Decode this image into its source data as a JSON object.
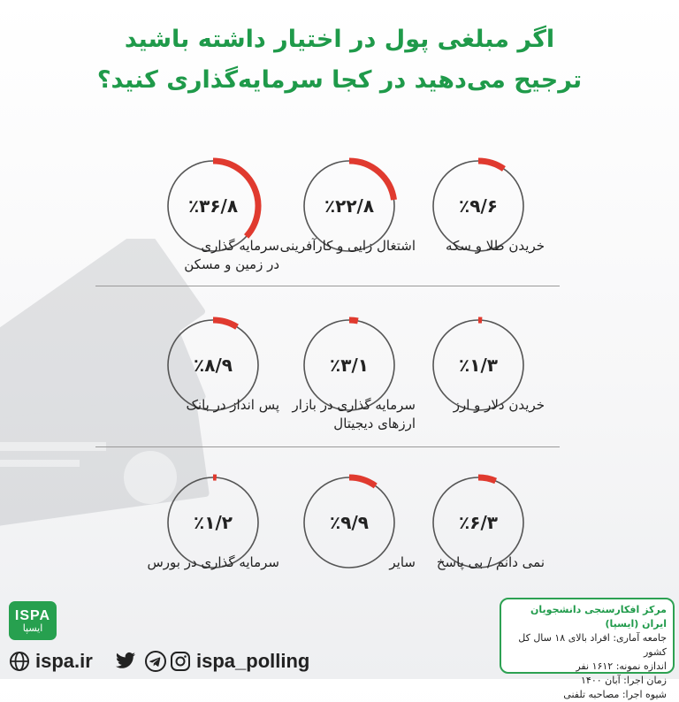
{
  "title": {
    "line1": "اگر مبلغی پول در اختیار داشته باشید",
    "line2": "ترجیح می‌دهید در کجا سرمایه‌گذاری کنید؟"
  },
  "colors": {
    "accent": "#1f9a4a",
    "arc": "#e03a2f",
    "ring": "#555555"
  },
  "chart_data": {
    "type": "pie",
    "title": "اگر مبلغی پول در اختیار داشته باشید ترجیح می‌دهید در کجا سرمایه‌گذاری کنید؟",
    "items": [
      {
        "pct_text": "٪۳۶/۸",
        "value": 36.8,
        "label1": "سرمایه گذاری",
        "label2": "در زمین و مسکن"
      },
      {
        "pct_text": "٪۲۲/۸",
        "value": 22.8,
        "label1": "اشتغال زایی و کارآفرینی",
        "label2": ""
      },
      {
        "pct_text": "٪۹/۶",
        "value": 9.6,
        "label1": "خریدن طلا و سکه",
        "label2": ""
      },
      {
        "pct_text": "٪۸/۹",
        "value": 8.9,
        "label1": "پس انداز در بانک",
        "label2": ""
      },
      {
        "pct_text": "٪۳/۱",
        "value": 3.1,
        "label1": "سرمایه گذاری در بازار",
        "label2": "ارزهای دیجیتال"
      },
      {
        "pct_text": "٪۱/۳",
        "value": 1.3,
        "label1": "خریدن دلار و ارز",
        "label2": ""
      },
      {
        "pct_text": "٪۱/۲",
        "value": 1.2,
        "label1": "سرمایه گذاری در بورس",
        "label2": ""
      },
      {
        "pct_text": "٪۹/۹",
        "value": 9.9,
        "label1": "سایر",
        "label2": ""
      },
      {
        "pct_text": "٪۶/۳",
        "value": 6.3,
        "label1": "نمی دانم / بی پاسخ",
        "label2": ""
      }
    ]
  },
  "footer": {
    "org": "مرکز افکارسنجی دانشجویان ایران (ایسپا)",
    "population": "جامعه آماری: افراد بالای ۱۸ سال کل کشور",
    "sample": "اندازه نمونه: ۱۶۱۲ نفر",
    "date": "زمان اجرا: آبان ۱۴۰۰",
    "method": "شیوه اجرا: مصاحبه تلفنی"
  },
  "logo": {
    "en": "ISPA",
    "fa": "ایسپا"
  },
  "social": {
    "website": "ispa.ir",
    "handle": "ispa_polling"
  }
}
